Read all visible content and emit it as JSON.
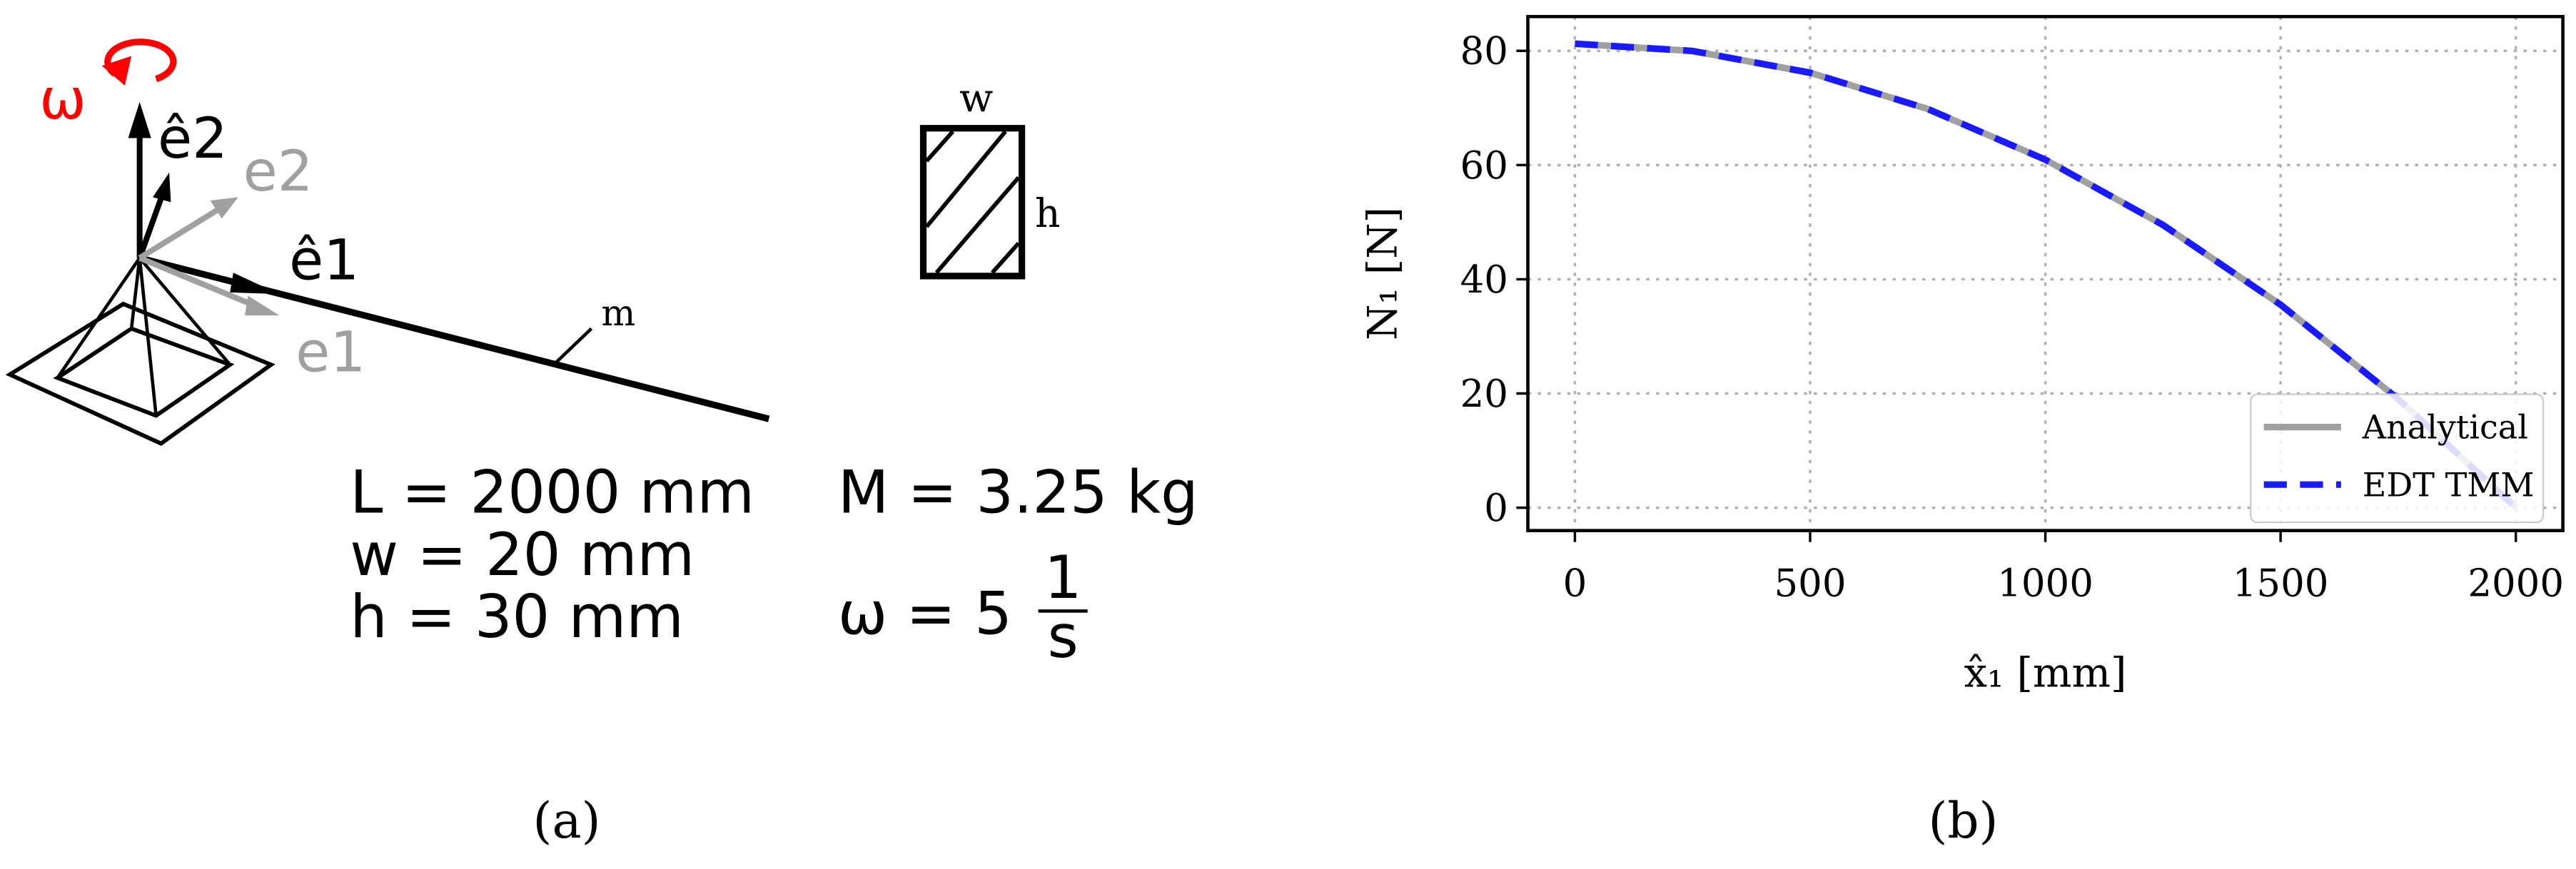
{
  "panel_a": {
    "omega": "ω",
    "e2_hat": "ê2",
    "e2": "e2",
    "e1_hat": "ê1",
    "e1": "e1",
    "m": "m",
    "w": "w",
    "h": "h",
    "eq_L": "L = 2000 mm",
    "eq_M": "M = 3.25 kg",
    "eq_w": "w = 20 mm",
    "eq_h": "h = 30 mm",
    "eq_omega": "ω = 5",
    "frac_num": "1",
    "frac_den": "s"
  },
  "captions": [
    "(a)",
    "(b)"
  ],
  "chart_data": {
    "type": "line",
    "x_label": "x̂₁ [mm]",
    "y_label": "N₁ [N]",
    "x": [
      0,
      250,
      500,
      750,
      1000,
      1250,
      1500,
      1750,
      2000
    ],
    "series": [
      {
        "name": "Analytical",
        "color": "#a0a0a0",
        "dash": false,
        "values": [
          81.25,
          79.98,
          76.17,
          69.82,
          60.94,
          49.51,
          35.55,
          19.04,
          0
        ]
      },
      {
        "name": "EDT TMM",
        "color": "#1a1aff",
        "dash": true,
        "values": [
          81.25,
          79.98,
          76.17,
          69.82,
          60.94,
          49.51,
          35.55,
          19.04,
          0
        ]
      }
    ],
    "xlim": [
      -100,
      2100
    ],
    "ylim": [
      -4,
      86
    ],
    "xticks": [
      0,
      500,
      1000,
      1500,
      2000
    ],
    "yticks": [
      0,
      20,
      40,
      60,
      80
    ],
    "grid": true,
    "legend": "lower right"
  }
}
